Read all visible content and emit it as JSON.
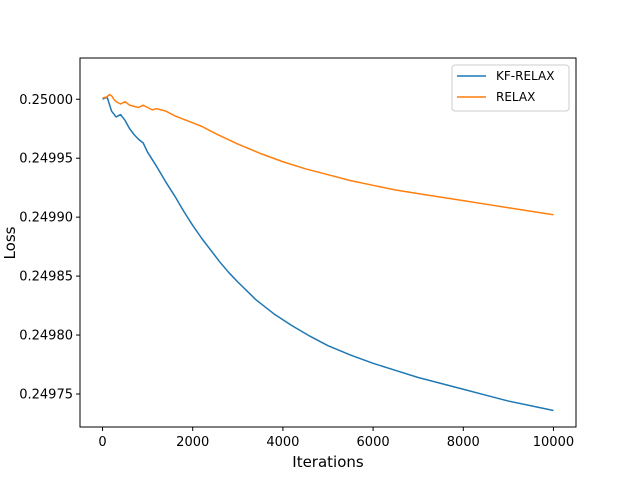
{
  "chart_data": {
    "type": "line",
    "xlabel": "Iterations",
    "ylabel": "Loss",
    "xlim": [
      -500,
      10500
    ],
    "ylim": [
      0.249722,
      0.250035
    ],
    "xticks": [
      0,
      2000,
      4000,
      6000,
      8000,
      10000
    ],
    "xtick_labels": [
      "0",
      "2000",
      "4000",
      "6000",
      "8000",
      "10000"
    ],
    "yticks": [
      0.24975,
      0.2498,
      0.24985,
      0.2499,
      0.24995,
      0.25
    ],
    "ytick_labels": [
      "0.24975",
      "0.24980",
      "0.24985",
      "0.24990",
      "0.24995",
      "0.25000"
    ],
    "grid": false,
    "legend_position": "top-right",
    "series": [
      {
        "name": "KF-RELAX",
        "color": "#1f77b4",
        "x": [
          0,
          100,
          200,
          300,
          400,
          500,
          600,
          700,
          800,
          900,
          1000,
          1200,
          1400,
          1600,
          1800,
          2000,
          2200,
          2400,
          2600,
          2800,
          3000,
          3400,
          3800,
          4200,
          4600,
          5000,
          5500,
          6000,
          6500,
          7000,
          7500,
          8000,
          8500,
          9000,
          9500,
          10000
        ],
        "y": [
          0.25,
          0.250002,
          0.24999,
          0.249985,
          0.249987,
          0.249982,
          0.249975,
          0.24997,
          0.249966,
          0.249963,
          0.249955,
          0.249943,
          0.24993,
          0.249918,
          0.249905,
          0.249893,
          0.249882,
          0.249872,
          0.249862,
          0.249853,
          0.249845,
          0.24983,
          0.249818,
          0.249808,
          0.249799,
          0.249791,
          0.249783,
          0.249776,
          0.24977,
          0.249764,
          0.249759,
          0.249754,
          0.249749,
          0.249744,
          0.24974,
          0.249736
        ]
      },
      {
        "name": "RELAX",
        "color": "#ff7f0e",
        "x": [
          0,
          100,
          150,
          200,
          250,
          300,
          400,
          500,
          600,
          700,
          800,
          900,
          1000,
          1100,
          1200,
          1300,
          1400,
          1600,
          1800,
          2000,
          2200,
          2500,
          3000,
          3500,
          4000,
          4500,
          5000,
          5500,
          6000,
          6500,
          7000,
          7500,
          8000,
          8500,
          9000,
          9500,
          10000
        ],
        "y": [
          0.250001,
          0.250002,
          0.250004,
          0.250003,
          0.25,
          0.249998,
          0.249996,
          0.249998,
          0.249995,
          0.249994,
          0.249993,
          0.249995,
          0.249993,
          0.249991,
          0.249992,
          0.249991,
          0.24999,
          0.249986,
          0.249983,
          0.24998,
          0.249977,
          0.249971,
          0.249962,
          0.249954,
          0.249947,
          0.249941,
          0.249936,
          0.249931,
          0.249927,
          0.249923,
          0.24992,
          0.249917,
          0.249914,
          0.249911,
          0.249908,
          0.249905,
          0.249902
        ]
      }
    ]
  }
}
